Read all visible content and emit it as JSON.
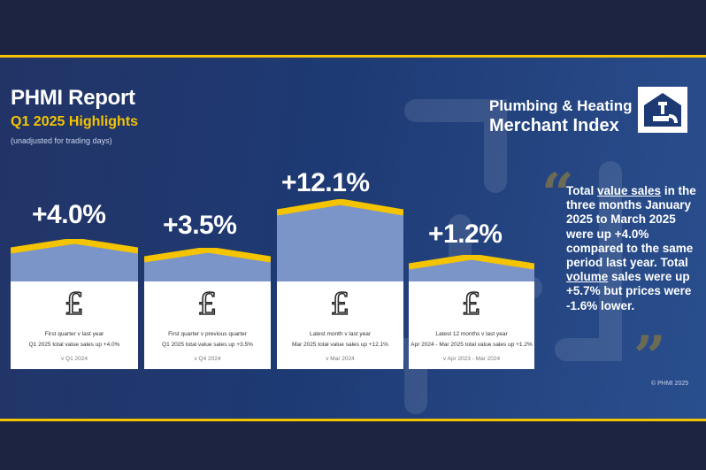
{
  "header": {
    "title": "PHMI Report",
    "subtitle": "Q1 2025 Highlights",
    "note": "(unadjusted for trading days)"
  },
  "logo": {
    "line1": "Plumbing & Heating",
    "line2": "Merchant Index"
  },
  "cards": [
    {
      "pct": "+4.0%",
      "pound": "£",
      "label": "First quarter v last year",
      "detail": "Q1 2025 total value sales up +4.0%",
      "period": "v Q1 2024"
    },
    {
      "pct": "+3.5%",
      "pound": "£",
      "label": "First quarter v previous quarter",
      "detail": "Q1 2025 total value sales up +3.5%",
      "period": "v Q4 2024"
    },
    {
      "pct": "+12.1%",
      "pound": "£",
      "label": "Latest month v last year",
      "detail": "Mar 2025 total value sales up +12.1%",
      "period": "v Mar 2024"
    },
    {
      "pct": "+1.2%",
      "pound": "£",
      "label": "Latest 12 months v last year",
      "detail": "Apr 2024 - Mar 2025 total value sales up +1.2%",
      "period": "v Apr 2023 - Mar 2024"
    }
  ],
  "quote": {
    "p1": "Total ",
    "u1": "value sales",
    "p2": " in the three months January 2025 to March 2025 were up +4.0% compared to the same period last year. Total ",
    "u2": "volume",
    "p3": " sales were up +5.7% but prices were -1.6% lower."
  },
  "copyright": "© PHMI 2025",
  "colors": {
    "navy": "#1c2442",
    "panel": "#1e3a74",
    "gold": "#f5c400",
    "bar": "#7c95c8"
  }
}
